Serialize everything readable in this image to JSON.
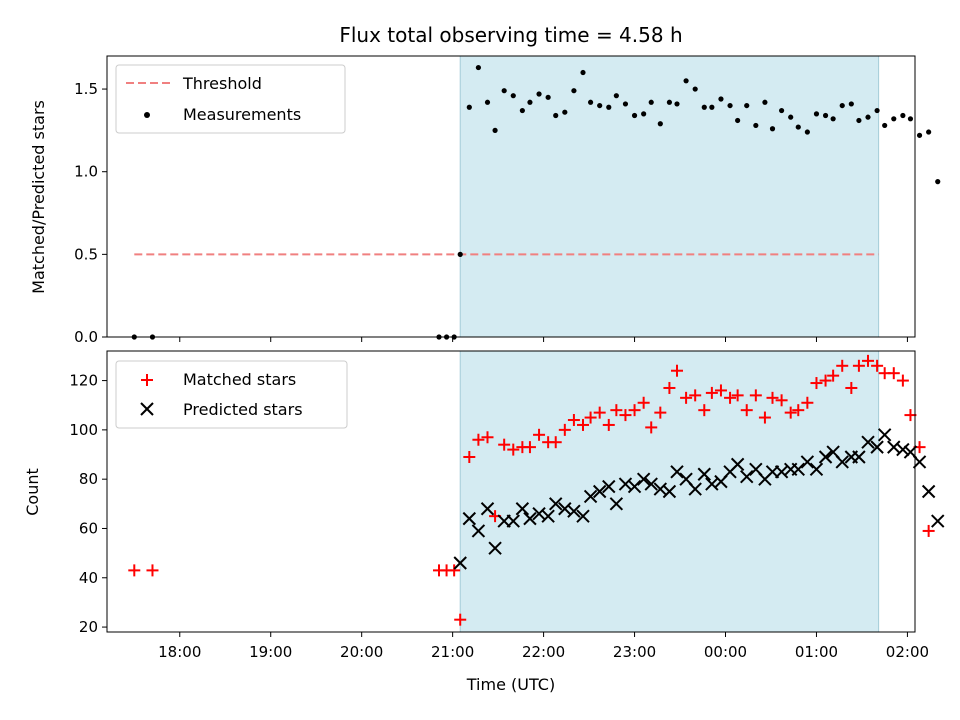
{
  "chart_data": [
    {
      "type": "scatter",
      "title": "Flux total observing time = 4.58 h",
      "xlabel": "",
      "ylabel": "Matched/Predicted stars",
      "ylim": [
        0,
        1.7
      ],
      "yticks": [
        "0.0",
        "0.5",
        "1.0",
        "1.5"
      ],
      "xlim": [
        "17:12",
        "02:05"
      ],
      "legend_position": "top-left",
      "shaded_region": {
        "x_start": "21:05",
        "x_end": "01:41",
        "color": "#add8e6"
      },
      "threshold": {
        "name": "Threshold",
        "y": 0.5,
        "x_start": "17:30",
        "x_end": "01:41",
        "color": "#f08080",
        "style": "dashed"
      },
      "series": [
        {
          "name": "Measurements",
          "marker": "dot",
          "color": "#000000",
          "points": [
            [
              "17:30",
              0
            ],
            [
              "17:42",
              0
            ],
            [
              "20:51",
              0
            ],
            [
              "20:56",
              0
            ],
            [
              "21:01",
              0
            ],
            [
              "21:05",
              0.5
            ],
            [
              "21:11",
              1.39
            ],
            [
              "21:17",
              1.63
            ],
            [
              "21:23",
              1.42
            ],
            [
              "21:28",
              1.25
            ],
            [
              "21:34",
              1.49
            ],
            [
              "21:40",
              1.46
            ],
            [
              "21:46",
              1.37
            ],
            [
              "21:51",
              1.42
            ],
            [
              "21:57",
              1.47
            ],
            [
              "22:03",
              1.45
            ],
            [
              "22:08",
              1.34
            ],
            [
              "22:14",
              1.36
            ],
            [
              "22:20",
              1.49
            ],
            [
              "22:26",
              1.6
            ],
            [
              "22:31",
              1.42
            ],
            [
              "22:37",
              1.4
            ],
            [
              "22:43",
              1.39
            ],
            [
              "22:48",
              1.46
            ],
            [
              "22:54",
              1.41
            ],
            [
              "23:00",
              1.34
            ],
            [
              "23:06",
              1.35
            ],
            [
              "23:11",
              1.42
            ],
            [
              "23:17",
              1.29
            ],
            [
              "23:23",
              1.42
            ],
            [
              "23:28",
              1.41
            ],
            [
              "23:34",
              1.55
            ],
            [
              "23:40",
              1.5
            ],
            [
              "23:46",
              1.39
            ],
            [
              "23:51",
              1.39
            ],
            [
              "23:57",
              1.44
            ],
            [
              "00:03",
              1.4
            ],
            [
              "00:08",
              1.31
            ],
            [
              "00:14",
              1.4
            ],
            [
              "00:20",
              1.28
            ],
            [
              "00:26",
              1.42
            ],
            [
              "00:31",
              1.26
            ],
            [
              "00:37",
              1.37
            ],
            [
              "00:43",
              1.33
            ],
            [
              "00:48",
              1.27
            ],
            [
              "00:54",
              1.24
            ],
            [
              "01:00",
              1.35
            ],
            [
              "01:06",
              1.34
            ],
            [
              "01:11",
              1.32
            ],
            [
              "01:17",
              1.4
            ],
            [
              "01:23",
              1.41
            ],
            [
              "01:28",
              1.31
            ],
            [
              "01:34",
              1.33
            ],
            [
              "01:40",
              1.37
            ],
            [
              "01:45",
              1.28
            ],
            [
              "01:51",
              1.32
            ],
            [
              "01:57",
              1.34
            ],
            [
              "02:02",
              1.32
            ],
            [
              "02:08",
              1.22
            ],
            [
              "02:14",
              1.24
            ],
            [
              "02:20",
              0.94
            ]
          ]
        }
      ]
    },
    {
      "type": "scatter",
      "title": "",
      "xlabel": "Time (UTC)",
      "ylabel": "Count",
      "ylim": [
        18,
        132
      ],
      "yticks": [
        "20",
        "40",
        "60",
        "80",
        "100",
        "120"
      ],
      "xticks": [
        "18:00",
        "19:00",
        "20:00",
        "21:00",
        "22:00",
        "23:00",
        "00:00",
        "01:00",
        "02:00"
      ],
      "legend_position": "top-left",
      "shaded_region": {
        "x_start": "21:05",
        "x_end": "01:41",
        "color": "#add8e6"
      },
      "series": [
        {
          "name": "Matched stars",
          "marker": "plus",
          "color": "#ff0000",
          "points": [
            [
              "17:30",
              43
            ],
            [
              "17:42",
              43
            ],
            [
              "20:51",
              43
            ],
            [
              "20:56",
              43
            ],
            [
              "21:01",
              43
            ],
            [
              "21:05",
              23
            ],
            [
              "21:11",
              89
            ],
            [
              "21:17",
              96
            ],
            [
              "21:23",
              97
            ],
            [
              "21:28",
              65
            ],
            [
              "21:34",
              94
            ],
            [
              "21:40",
              92
            ],
            [
              "21:46",
              93
            ],
            [
              "21:51",
              93
            ],
            [
              "21:57",
              98
            ],
            [
              "22:03",
              95
            ],
            [
              "22:08",
              95
            ],
            [
              "22:14",
              100
            ],
            [
              "22:20",
              104
            ],
            [
              "22:26",
              102
            ],
            [
              "22:31",
              105
            ],
            [
              "22:37",
              107
            ],
            [
              "22:43",
              102
            ],
            [
              "22:48",
              108
            ],
            [
              "22:54",
              106
            ],
            [
              "23:00",
              108
            ],
            [
              "23:06",
              111
            ],
            [
              "23:11",
              101
            ],
            [
              "23:17",
              107
            ],
            [
              "23:23",
              117
            ],
            [
              "23:28",
              124
            ],
            [
              "23:34",
              113
            ],
            [
              "23:40",
              114
            ],
            [
              "23:46",
              108
            ],
            [
              "23:51",
              115
            ],
            [
              "23:57",
              116
            ],
            [
              "00:03",
              113
            ],
            [
              "00:08",
              114
            ],
            [
              "00:14",
              108
            ],
            [
              "00:20",
              114
            ],
            [
              "00:26",
              105
            ],
            [
              "00:31",
              113
            ],
            [
              "00:37",
              112
            ],
            [
              "00:43",
              107
            ],
            [
              "00:48",
              108
            ],
            [
              "00:54",
              111
            ],
            [
              "01:00",
              119
            ],
            [
              "01:06",
              120
            ],
            [
              "01:11",
              122
            ],
            [
              "01:17",
              126
            ],
            [
              "01:23",
              117
            ],
            [
              "01:28",
              126
            ],
            [
              "01:34",
              128
            ],
            [
              "01:40",
              126
            ],
            [
              "01:45",
              123
            ],
            [
              "01:51",
              123
            ],
            [
              "01:57",
              120
            ],
            [
              "02:02",
              106
            ],
            [
              "02:08",
              93
            ],
            [
              "02:14",
              59
            ]
          ]
        },
        {
          "name": "Predicted stars",
          "marker": "x",
          "color": "#000000",
          "points": [
            [
              "21:05",
              46
            ],
            [
              "21:11",
              64
            ],
            [
              "21:17",
              59
            ],
            [
              "21:23",
              68
            ],
            [
              "21:28",
              52
            ],
            [
              "21:34",
              63
            ],
            [
              "21:40",
              63
            ],
            [
              "21:46",
              68
            ],
            [
              "21:51",
              64
            ],
            [
              "21:57",
              66
            ],
            [
              "22:03",
              65
            ],
            [
              "22:08",
              70
            ],
            [
              "22:14",
              68
            ],
            [
              "22:20",
              67
            ],
            [
              "22:26",
              65
            ],
            [
              "22:31",
              73
            ],
            [
              "22:37",
              75
            ],
            [
              "22:43",
              77
            ],
            [
              "22:48",
              70
            ],
            [
              "22:54",
              78
            ],
            [
              "23:00",
              77
            ],
            [
              "23:06",
              80
            ],
            [
              "23:11",
              78
            ],
            [
              "23:17",
              76
            ],
            [
              "23:23",
              75
            ],
            [
              "23:28",
              83
            ],
            [
              "23:34",
              80
            ],
            [
              "23:40",
              76
            ],
            [
              "23:46",
              82
            ],
            [
              "23:51",
              78
            ],
            [
              "23:57",
              79
            ],
            [
              "00:03",
              83
            ],
            [
              "00:08",
              86
            ],
            [
              "00:14",
              81
            ],
            [
              "00:20",
              84
            ],
            [
              "00:26",
              80
            ],
            [
              "00:31",
              83
            ],
            [
              "00:37",
              83
            ],
            [
              "00:43",
              84
            ],
            [
              "00:48",
              84
            ],
            [
              "00:54",
              87
            ],
            [
              "01:00",
              84
            ],
            [
              "01:06",
              89
            ],
            [
              "01:11",
              91
            ],
            [
              "01:17",
              87
            ],
            [
              "01:23",
              89
            ],
            [
              "01:28",
              89
            ],
            [
              "01:34",
              95
            ],
            [
              "01:40",
              93
            ],
            [
              "01:45",
              98
            ],
            [
              "01:51",
              93
            ],
            [
              "01:57",
              92
            ],
            [
              "02:02",
              91
            ],
            [
              "02:08",
              87
            ],
            [
              "02:14",
              75
            ],
            [
              "02:20",
              63
            ]
          ]
        }
      ]
    }
  ]
}
